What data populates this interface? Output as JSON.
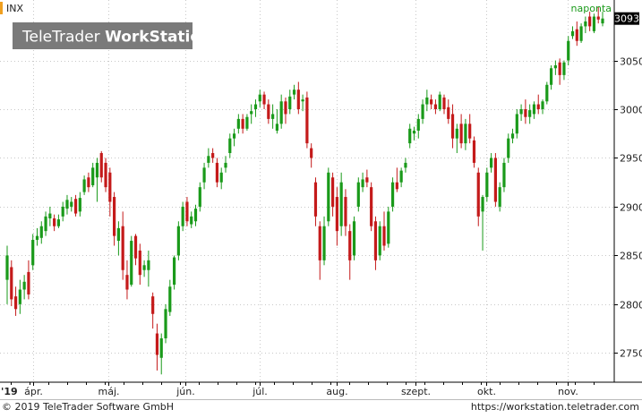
{
  "header": {
    "symbol": "INX",
    "period": "naponta",
    "watermark_prefix": "TeleTrader ",
    "watermark_product": "WorkStation"
  },
  "footer": {
    "copyright": "© 2019 TeleTrader Software GmbH",
    "url": "https://workstation.teletrader.com"
  },
  "colors": {
    "up": "#1a9a1a",
    "down": "#c41a1a",
    "grid": "#c8c8c8",
    "symbol_marker": "#f0a020",
    "period_text": "#1a9a1a",
    "watermark_bg": "#7a7a7a"
  },
  "chart_data": {
    "type": "candlestick",
    "y_axis": {
      "position": "right",
      "ylim": [
        2720,
        3112
      ],
      "ticks": [
        2750,
        2800,
        2850,
        2900,
        2950,
        3000,
        3050
      ]
    },
    "x_axis": {
      "year_label": "'19",
      "months": [
        "ápr.",
        "máj.",
        "jún.",
        "júl.",
        "aug.",
        "szept.",
        "okt.",
        "nov."
      ]
    },
    "last_price": 3093,
    "grid": true,
    "candles": [
      {
        "o": 2825,
        "h": 2860,
        "l": 2800,
        "c": 2850
      },
      {
        "o": 2838,
        "h": 2845,
        "l": 2798,
        "c": 2805
      },
      {
        "o": 2808,
        "h": 2818,
        "l": 2788,
        "c": 2795
      },
      {
        "o": 2800,
        "h": 2825,
        "l": 2790,
        "c": 2815
      },
      {
        "o": 2815,
        "h": 2830,
        "l": 2805,
        "c": 2823
      },
      {
        "o": 2833,
        "h": 2845,
        "l": 2805,
        "c": 2810
      },
      {
        "o": 2840,
        "h": 2872,
        "l": 2835,
        "c": 2866
      },
      {
        "o": 2866,
        "h": 2878,
        "l": 2860,
        "c": 2870
      },
      {
        "o": 2868,
        "h": 2885,
        "l": 2862,
        "c": 2880
      },
      {
        "o": 2875,
        "h": 2895,
        "l": 2870,
        "c": 2890
      },
      {
        "o": 2888,
        "h": 2900,
        "l": 2880,
        "c": 2893
      },
      {
        "o": 2888,
        "h": 2892,
        "l": 2875,
        "c": 2880
      },
      {
        "o": 2880,
        "h": 2892,
        "l": 2878,
        "c": 2887
      },
      {
        "o": 2890,
        "h": 2905,
        "l": 2885,
        "c": 2900
      },
      {
        "o": 2898,
        "h": 2912,
        "l": 2892,
        "c": 2907
      },
      {
        "o": 2900,
        "h": 2910,
        "l": 2895,
        "c": 2905
      },
      {
        "o": 2908,
        "h": 2912,
        "l": 2890,
        "c": 2893
      },
      {
        "o": 2895,
        "h": 2915,
        "l": 2890,
        "c": 2909
      },
      {
        "o": 2915,
        "h": 2932,
        "l": 2912,
        "c": 2928
      },
      {
        "o": 2930,
        "h": 2935,
        "l": 2915,
        "c": 2920
      },
      {
        "o": 2922,
        "h": 2945,
        "l": 2920,
        "c": 2940
      },
      {
        "o": 2930,
        "h": 2950,
        "l": 2905,
        "c": 2945
      },
      {
        "o": 2955,
        "h": 2957,
        "l": 2925,
        "c": 2930
      },
      {
        "o": 2945,
        "h": 2950,
        "l": 2915,
        "c": 2920
      },
      {
        "o": 2935,
        "h": 2940,
        "l": 2890,
        "c": 2905
      },
      {
        "o": 2910,
        "h": 2915,
        "l": 2860,
        "c": 2870
      },
      {
        "o": 2865,
        "h": 2885,
        "l": 2850,
        "c": 2878
      },
      {
        "o": 2880,
        "h": 2895,
        "l": 2825,
        "c": 2835
      },
      {
        "o": 2830,
        "h": 2845,
        "l": 2805,
        "c": 2815
      },
      {
        "o": 2820,
        "h": 2870,
        "l": 2818,
        "c": 2865
      },
      {
        "o": 2870,
        "h": 2872,
        "l": 2840,
        "c": 2847
      },
      {
        "o": 2855,
        "h": 2862,
        "l": 2820,
        "c": 2830
      },
      {
        "o": 2835,
        "h": 2845,
        "l": 2828,
        "c": 2840
      },
      {
        "o": 2835,
        "h": 2855,
        "l": 2818,
        "c": 2845
      },
      {
        "o": 2808,
        "h": 2812,
        "l": 2775,
        "c": 2790
      },
      {
        "o": 2770,
        "h": 2780,
        "l": 2732,
        "c": 2748
      },
      {
        "o": 2745,
        "h": 2770,
        "l": 2728,
        "c": 2765
      },
      {
        "o": 2765,
        "h": 2800,
        "l": 2760,
        "c": 2795
      },
      {
        "o": 2792,
        "h": 2825,
        "l": 2788,
        "c": 2818
      },
      {
        "o": 2820,
        "h": 2850,
        "l": 2815,
        "c": 2848
      },
      {
        "o": 2850,
        "h": 2885,
        "l": 2845,
        "c": 2880
      },
      {
        "o": 2880,
        "h": 2905,
        "l": 2875,
        "c": 2900
      },
      {
        "o": 2905,
        "h": 2910,
        "l": 2880,
        "c": 2885
      },
      {
        "o": 2882,
        "h": 2895,
        "l": 2878,
        "c": 2890
      },
      {
        "o": 2885,
        "h": 2902,
        "l": 2880,
        "c": 2898
      },
      {
        "o": 2900,
        "h": 2925,
        "l": 2895,
        "c": 2920
      },
      {
        "o": 2925,
        "h": 2945,
        "l": 2918,
        "c": 2940
      },
      {
        "o": 2945,
        "h": 2960,
        "l": 2940,
        "c": 2952
      },
      {
        "o": 2955,
        "h": 2960,
        "l": 2945,
        "c": 2950
      },
      {
        "o": 2945,
        "h": 2950,
        "l": 2920,
        "c": 2925
      },
      {
        "o": 2925,
        "h": 2940,
        "l": 2918,
        "c": 2935
      },
      {
        "o": 2940,
        "h": 2952,
        "l": 2935,
        "c": 2945
      },
      {
        "o": 2955,
        "h": 2975,
        "l": 2950,
        "c": 2970
      },
      {
        "o": 2970,
        "h": 2980,
        "l": 2962,
        "c": 2975
      },
      {
        "o": 2980,
        "h": 2995,
        "l": 2975,
        "c": 2990
      },
      {
        "o": 2990,
        "h": 2995,
        "l": 2975,
        "c": 2980
      },
      {
        "o": 2980,
        "h": 2995,
        "l": 2978,
        "c": 2992
      },
      {
        "o": 2995,
        "h": 3005,
        "l": 2985,
        "c": 2998
      },
      {
        "o": 3000,
        "h": 3010,
        "l": 2992,
        "c": 3005
      },
      {
        "o": 3008,
        "h": 3020,
        "l": 3002,
        "c": 3015
      },
      {
        "o": 3015,
        "h": 3018,
        "l": 3000,
        "c": 3005
      },
      {
        "o": 3005,
        "h": 3010,
        "l": 2985,
        "c": 2990
      },
      {
        "o": 2990,
        "h": 3005,
        "l": 2980,
        "c": 2995
      },
      {
        "o": 2978,
        "h": 3000,
        "l": 2975,
        "c": 2985
      },
      {
        "o": 2985,
        "h": 3015,
        "l": 2980,
        "c": 3008
      },
      {
        "o": 3008,
        "h": 3012,
        "l": 2985,
        "c": 2995
      },
      {
        "o": 3000,
        "h": 3020,
        "l": 2995,
        "c": 3013
      },
      {
        "o": 3015,
        "h": 3025,
        "l": 3010,
        "c": 3020
      },
      {
        "o": 3020,
        "h": 3028,
        "l": 2995,
        "c": 3000
      },
      {
        "o": 3008,
        "h": 3015,
        "l": 2998,
        "c": 3010
      },
      {
        "o": 3012,
        "h": 3018,
        "l": 2960,
        "c": 2965
      },
      {
        "o": 2960,
        "h": 2965,
        "l": 2940,
        "c": 2950
      },
      {
        "o": 2925,
        "h": 2930,
        "l": 2880,
        "c": 2890
      },
      {
        "o": 2880,
        "h": 2885,
        "l": 2825,
        "c": 2845
      },
      {
        "o": 2845,
        "h": 2890,
        "l": 2840,
        "c": 2880
      },
      {
        "o": 2885,
        "h": 2940,
        "l": 2880,
        "c": 2935
      },
      {
        "o": 2930,
        "h": 2935,
        "l": 2890,
        "c": 2900
      },
      {
        "o": 2910,
        "h": 2920,
        "l": 2860,
        "c": 2875
      },
      {
        "o": 2880,
        "h": 2935,
        "l": 2870,
        "c": 2925
      },
      {
        "o": 2910,
        "h": 2918,
        "l": 2870,
        "c": 2880
      },
      {
        "o": 2875,
        "h": 2882,
        "l": 2825,
        "c": 2845
      },
      {
        "o": 2850,
        "h": 2890,
        "l": 2845,
        "c": 2885
      },
      {
        "o": 2900,
        "h": 2930,
        "l": 2895,
        "c": 2925
      },
      {
        "o": 2920,
        "h": 2935,
        "l": 2915,
        "c": 2928
      },
      {
        "o": 2930,
        "h": 2938,
        "l": 2920,
        "c": 2925
      },
      {
        "o": 2920,
        "h": 2925,
        "l": 2875,
        "c": 2880
      },
      {
        "o": 2885,
        "h": 2890,
        "l": 2835,
        "c": 2845
      },
      {
        "o": 2850,
        "h": 2885,
        "l": 2845,
        "c": 2880
      },
      {
        "o": 2880,
        "h": 2895,
        "l": 2855,
        "c": 2860
      },
      {
        "o": 2862,
        "h": 2900,
        "l": 2858,
        "c": 2895
      },
      {
        "o": 2900,
        "h": 2930,
        "l": 2895,
        "c": 2925
      },
      {
        "o": 2925,
        "h": 2940,
        "l": 2915,
        "c": 2918
      },
      {
        "o": 2925,
        "h": 2940,
        "l": 2920,
        "c": 2937
      },
      {
        "o": 2940,
        "h": 2950,
        "l": 2935,
        "c": 2945
      },
      {
        "o": 2965,
        "h": 2985,
        "l": 2960,
        "c": 2980
      },
      {
        "o": 2975,
        "h": 2982,
        "l": 2968,
        "c": 2978
      },
      {
        "o": 2978,
        "h": 2995,
        "l": 2970,
        "c": 2990
      },
      {
        "o": 2990,
        "h": 3010,
        "l": 2985,
        "c": 3005
      },
      {
        "o": 3005,
        "h": 3020,
        "l": 2998,
        "c": 3012
      },
      {
        "o": 3010,
        "h": 3015,
        "l": 3000,
        "c": 3005
      },
      {
        "o": 3005,
        "h": 3010,
        "l": 2995,
        "c": 3000
      },
      {
        "o": 3000,
        "h": 3018,
        "l": 2998,
        "c": 3015
      },
      {
        "o": 3012,
        "h": 3015,
        "l": 2995,
        "c": 3000
      },
      {
        "o": 3002,
        "h": 3010,
        "l": 2985,
        "c": 2990
      },
      {
        "o": 2995,
        "h": 3005,
        "l": 2960,
        "c": 2970
      },
      {
        "o": 2970,
        "h": 2985,
        "l": 2955,
        "c": 2980
      },
      {
        "o": 2985,
        "h": 2995,
        "l": 2960,
        "c": 2965
      },
      {
        "o": 2965,
        "h": 2990,
        "l": 2958,
        "c": 2985
      },
      {
        "o": 2985,
        "h": 2995,
        "l": 2965,
        "c": 2970
      },
      {
        "o": 2968,
        "h": 2972,
        "l": 2940,
        "c": 2945
      },
      {
        "o": 2935,
        "h": 2940,
        "l": 2880,
        "c": 2890
      },
      {
        "o": 2895,
        "h": 2912,
        "l": 2855,
        "c": 2910
      },
      {
        "o": 2910,
        "h": 2940,
        "l": 2905,
        "c": 2935
      },
      {
        "o": 2940,
        "h": 2955,
        "l": 2935,
        "c": 2950
      },
      {
        "o": 2950,
        "h": 2955,
        "l": 2900,
        "c": 2905
      },
      {
        "o": 2900,
        "h": 2925,
        "l": 2895,
        "c": 2920
      },
      {
        "o": 2920,
        "h": 2950,
        "l": 2915,
        "c": 2945
      },
      {
        "o": 2950,
        "h": 2975,
        "l": 2945,
        "c": 2970
      },
      {
        "o": 2970,
        "h": 2980,
        "l": 2965,
        "c": 2975
      },
      {
        "o": 2975,
        "h": 3000,
        "l": 2970,
        "c": 2995
      },
      {
        "o": 2995,
        "h": 3005,
        "l": 2988,
        "c": 3000
      },
      {
        "o": 3000,
        "h": 3010,
        "l": 2985,
        "c": 2992
      },
      {
        "o": 2992,
        "h": 3005,
        "l": 2985,
        "c": 2999
      },
      {
        "o": 2995,
        "h": 3008,
        "l": 2990,
        "c": 3005
      },
      {
        "o": 3005,
        "h": 3015,
        "l": 2995,
        "c": 3000
      },
      {
        "o": 3000,
        "h": 3010,
        "l": 2995,
        "c": 3008
      },
      {
        "o": 3008,
        "h": 3028,
        "l": 3005,
        "c": 3025
      },
      {
        "o": 3025,
        "h": 3045,
        "l": 3020,
        "c": 3042
      },
      {
        "o": 3042,
        "h": 3050,
        "l": 3035,
        "c": 3045
      },
      {
        "o": 3048,
        "h": 3052,
        "l": 3025,
        "c": 3035
      },
      {
        "o": 3035,
        "h": 3050,
        "l": 3030,
        "c": 3048
      },
      {
        "o": 3050,
        "h": 3075,
        "l": 3045,
        "c": 3070
      },
      {
        "o": 3075,
        "h": 3085,
        "l": 3072,
        "c": 3080
      },
      {
        "o": 3082,
        "h": 3090,
        "l": 3065,
        "c": 3070
      },
      {
        "o": 3070,
        "h": 3088,
        "l": 3068,
        "c": 3085
      },
      {
        "o": 3085,
        "h": 3095,
        "l": 3078,
        "c": 3090
      },
      {
        "o": 3095,
        "h": 3100,
        "l": 3080,
        "c": 3085
      },
      {
        "o": 3080,
        "h": 3098,
        "l": 3078,
        "c": 3095
      },
      {
        "o": 3095,
        "h": 3105,
        "l": 3088,
        "c": 3092
      },
      {
        "o": 3088,
        "h": 3100,
        "l": 3085,
        "c": 3093
      }
    ]
  }
}
